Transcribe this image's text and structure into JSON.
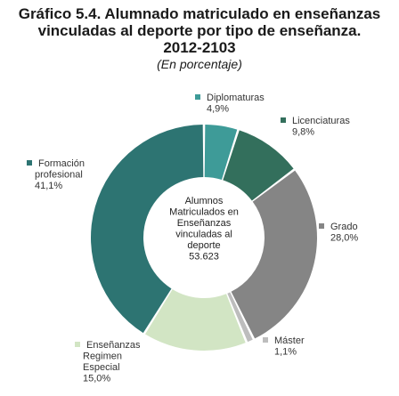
{
  "header": {
    "title_line1": "Gráfico 5.4. Alumnado matriculado en enseñanzas",
    "title_line2": "vinculadas al deporte por tipo de enseñanza.",
    "title_line3": "2012-2103",
    "subtitle": "(En porcentaje)"
  },
  "chart_data": {
    "type": "donut",
    "center_text": [
      "Alumnos",
      "Matriculados en",
      "Enseñanzas",
      "vinculadas al",
      "deporte",
      "53.623"
    ],
    "slices": [
      {
        "name": "Diplomaturas",
        "value": 4.9,
        "value_label": "4,9%",
        "color": "#3e9b98"
      },
      {
        "name": "Licenciaturas",
        "value": 9.8,
        "value_label": "9,8%",
        "color": "#336f5c"
      },
      {
        "name": "Grado",
        "value": 28.0,
        "value_label": "28,0%",
        "color": "#858585"
      },
      {
        "name": "Máster",
        "value": 1.1,
        "value_label": "1,1%",
        "color": "#bdbdbd"
      },
      {
        "name": "Enseñanzas Regimen Especial",
        "value": 15.0,
        "value_label": "15,0%",
        "color": "#d2e5c4"
      },
      {
        "name": "Formación profesional",
        "value": 41.1,
        "value_label": "41,1%",
        "color": "#2d7472"
      }
    ]
  }
}
